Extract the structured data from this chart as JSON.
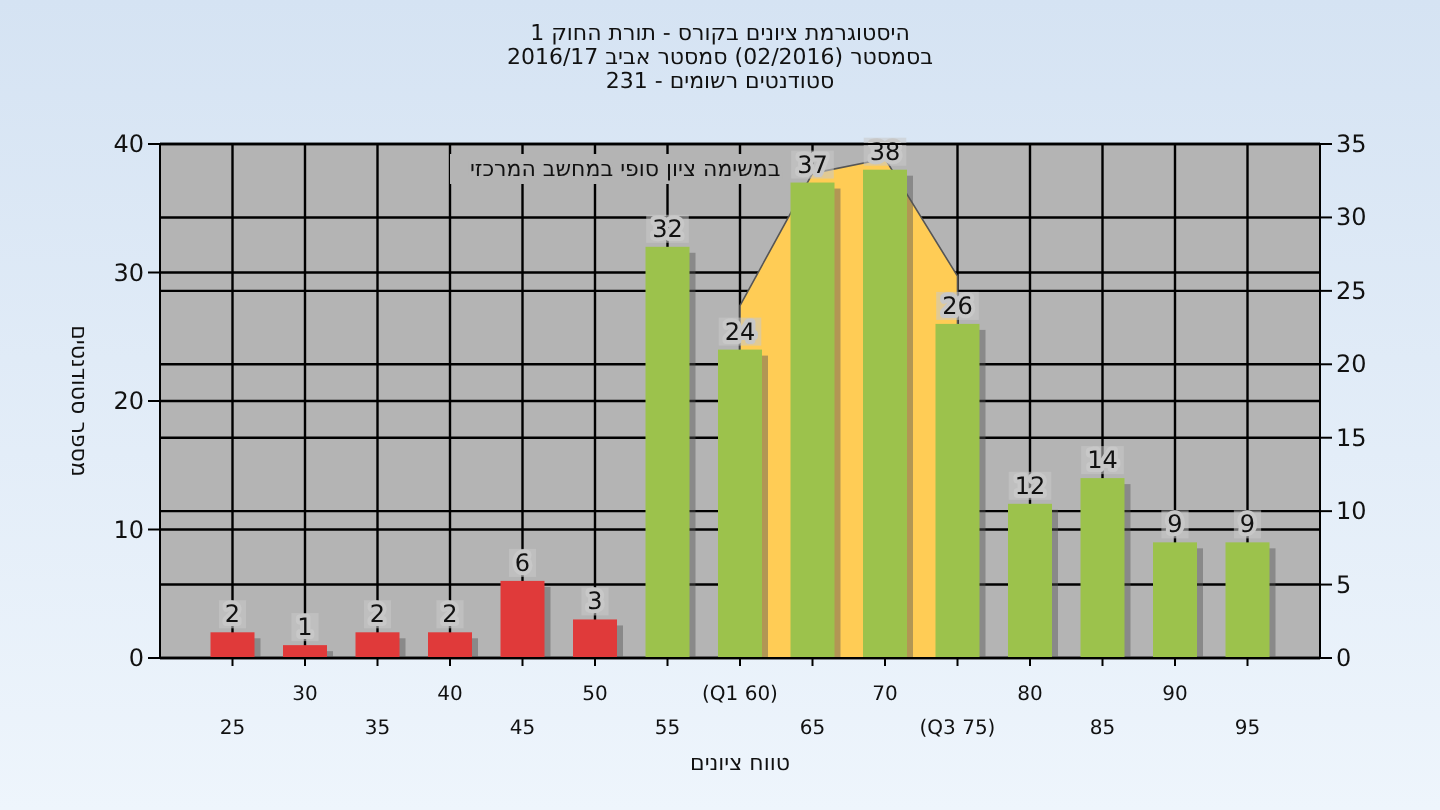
{
  "chart_data": {
    "type": "bar",
    "title": "היסטוגרמת ציונים בקורס - תורת החוק 1",
    "subtitle": "בסמסטר  (02/2016)  סמסטר אביב 2016/17\nסטודנטים רשומים - 231",
    "xlabel": "טווח ציונים",
    "ylabel": "מספר סטודנטים",
    "annotations": [
      "במשימה ציון סופי במחשב המרכזי"
    ],
    "categories": [
      "25",
      "30",
      "35",
      "40",
      "45",
      "50",
      "55",
      "(Q1 60)",
      "65",
      "70",
      "(Q3 75)",
      "80",
      "85",
      "90",
      "95"
    ],
    "series": [
      {
        "type": "area",
        "axis": "y2",
        "color": "#ffcc55",
        "values": [
          null,
          null,
          null,
          null,
          null,
          null,
          null,
          24,
          33,
          34,
          26,
          null,
          null,
          null,
          null
        ]
      },
      {
        "colors": [
          "#e03a3a",
          "#e03a3a",
          "#e03a3a",
          "#e03a3a",
          "#e03a3a",
          "#e03a3a",
          "#9cc24c",
          "#9cc24c",
          "#9cc24c",
          "#9cc24c",
          "#9cc24c",
          "#9cc24c",
          "#9cc24c",
          "#9cc24c",
          "#9cc24c"
        ],
        "values": [
          2,
          1,
          2,
          2,
          6,
          3,
          32,
          24,
          37,
          38,
          26,
          12,
          14,
          9,
          9
        ],
        "value_labels": [
          "2",
          "1",
          "2",
          "2",
          "6",
          "3",
          "32",
          "24",
          "37",
          "38",
          "26",
          "12",
          "14",
          "9",
          "9"
        ]
      }
    ],
    "ylim": [
      0,
      40
    ],
    "yticks": [
      0,
      10,
      20,
      30,
      40
    ],
    "y2lim": [
      0,
      35
    ],
    "y2ticks": [
      0,
      5,
      10,
      15,
      20,
      25,
      30,
      35
    ],
    "grid": true
  }
}
